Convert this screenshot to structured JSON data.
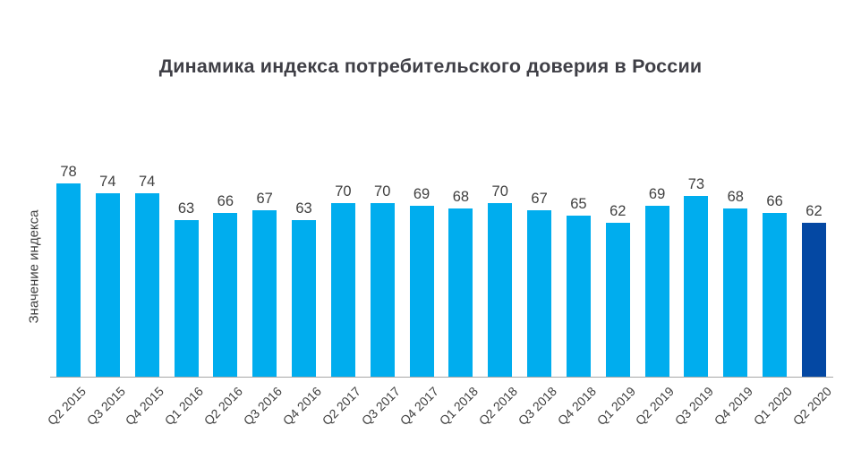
{
  "chart_data": {
    "type": "bar",
    "title": "Динамика индекса потребительского доверия в России",
    "ylabel": "Значение индекса",
    "xlabel": "",
    "categories": [
      "Q2 2015",
      "Q3 2015",
      "Q4 2015",
      "Q1 2016",
      "Q2 2016",
      "Q3 2016",
      "Q4 2016",
      "Q2 2017",
      "Q3 2017",
      "Q4 2017",
      "Q1 2018",
      "Q2 2018",
      "Q3 2018",
      "Q4 2018",
      "Q1 2019",
      "Q2 2019",
      "Q3 2019",
      "Q4 2019",
      "Q1 2020",
      "Q2 2020"
    ],
    "values": [
      78,
      74,
      74,
      63,
      66,
      67,
      63,
      70,
      70,
      69,
      68,
      70,
      67,
      65,
      62,
      69,
      73,
      68,
      66,
      62
    ],
    "data_labels": [
      78,
      74,
      74,
      63,
      66,
      67,
      63,
      70,
      70,
      69,
      68,
      70,
      67,
      65,
      62,
      69,
      73,
      68,
      66,
      62
    ],
    "bar_color": "#00ADEE",
    "highlight_color": "#0448A3",
    "highlight_category": "Q2 2020",
    "title_color": "#3F3F46",
    "label_color": "#404040",
    "axis_line_color": "#A6A6A6",
    "ylim": [
      0,
      78
    ],
    "grid": false,
    "legend": false,
    "x_tick_rotation": -45
  }
}
